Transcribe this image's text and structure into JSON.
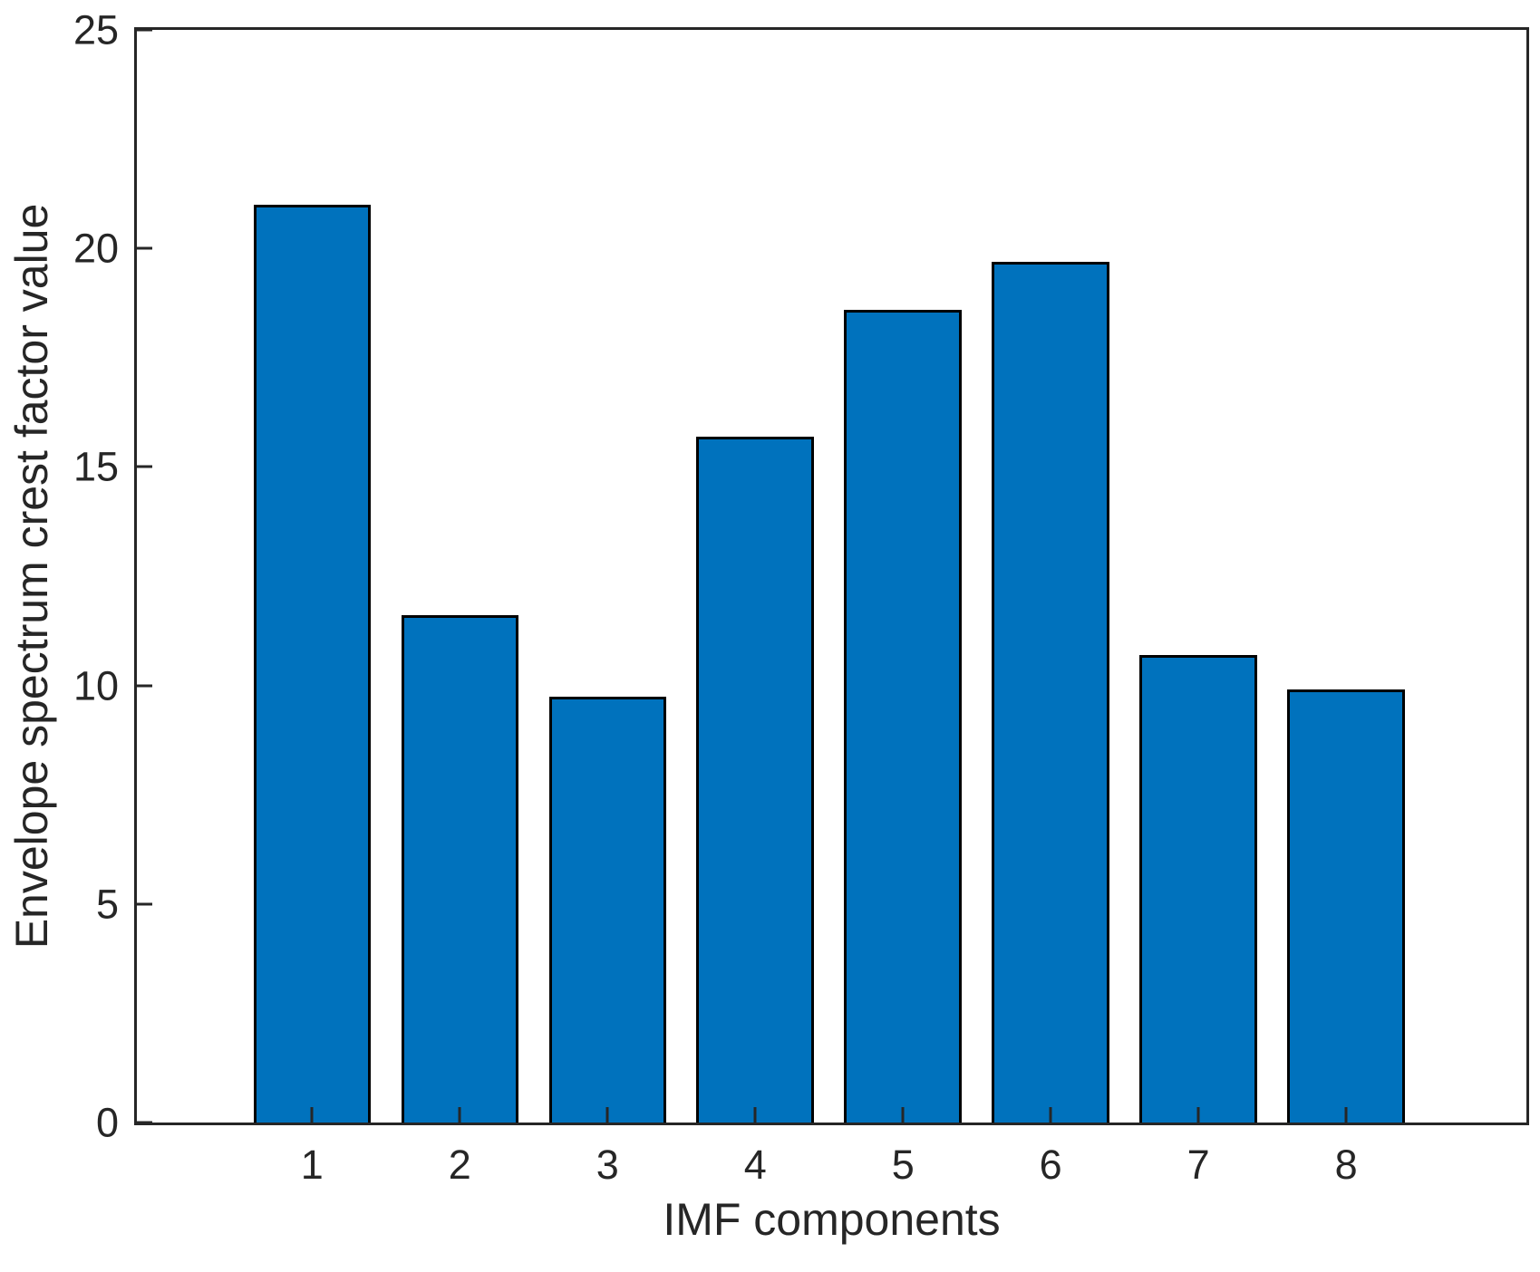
{
  "chart_data": {
    "type": "bar",
    "title": "",
    "categories": [
      "1",
      "2",
      "3",
      "4",
      "5",
      "6",
      "7",
      "8"
    ],
    "values": [
      21.0,
      11.6,
      9.75,
      15.7,
      18.6,
      19.7,
      10.7,
      9.9
    ],
    "xlabel": "IMF components",
    "ylabel": "Envelope spectrum crest factor value",
    "ylim": [
      0,
      25
    ],
    "yticks": [
      0,
      5,
      10,
      15,
      20,
      25
    ],
    "grid": false,
    "legend": null,
    "colors": {
      "bar_fill": "#0072BD",
      "bar_edge": "#000000",
      "axis": "#262626",
      "background": "#ffffff"
    },
    "layout": {
      "first_bar_center_frac": 0.1261,
      "bar_spacing_frac": 0.10631,
      "bar_width_frac": 0.08447,
      "tick_direction": "in"
    }
  }
}
